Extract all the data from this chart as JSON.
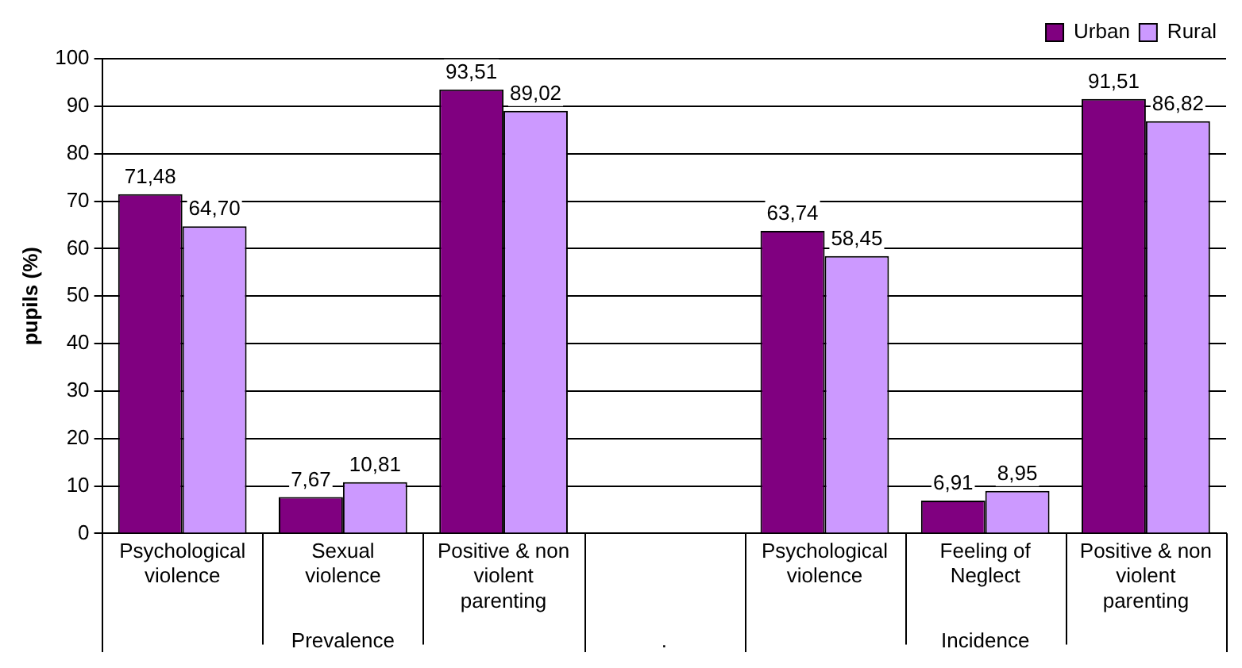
{
  "chart_data": {
    "type": "bar",
    "ylabel": "pupils (%)",
    "categories": [
      "Psychological violence",
      "Sexual violence",
      "Positive & non violent parenting",
      null,
      "Psychological violence",
      "Feeling of Neglect",
      "Positive & non violent parenting"
    ],
    "series": [
      {
        "name": "Urban",
        "color": "#800080",
        "values": [
          71.48,
          7.67,
          93.51,
          null,
          63.74,
          6.91,
          91.51
        ],
        "value_labels": [
          "71,48",
          "7,67",
          "93,51",
          null,
          "63,74",
          "6,91",
          "91,51"
        ]
      },
      {
        "name": "Rural",
        "color": "#cc99ff",
        "values": [
          64.7,
          10.81,
          89.02,
          null,
          58.45,
          8.95,
          86.82
        ],
        "value_labels": [
          "64,70",
          "10,81",
          "89,02",
          null,
          "58,45",
          "8,95",
          "86,82"
        ]
      }
    ],
    "annotations": [
      "Prevalence",
      ".",
      "Incidence"
    ],
    "ylim": [
      0,
      100
    ],
    "yticks": [
      0,
      10,
      20,
      30,
      40,
      50,
      60,
      70,
      80,
      90,
      100
    ],
    "grid": "y",
    "legend": "top right"
  }
}
